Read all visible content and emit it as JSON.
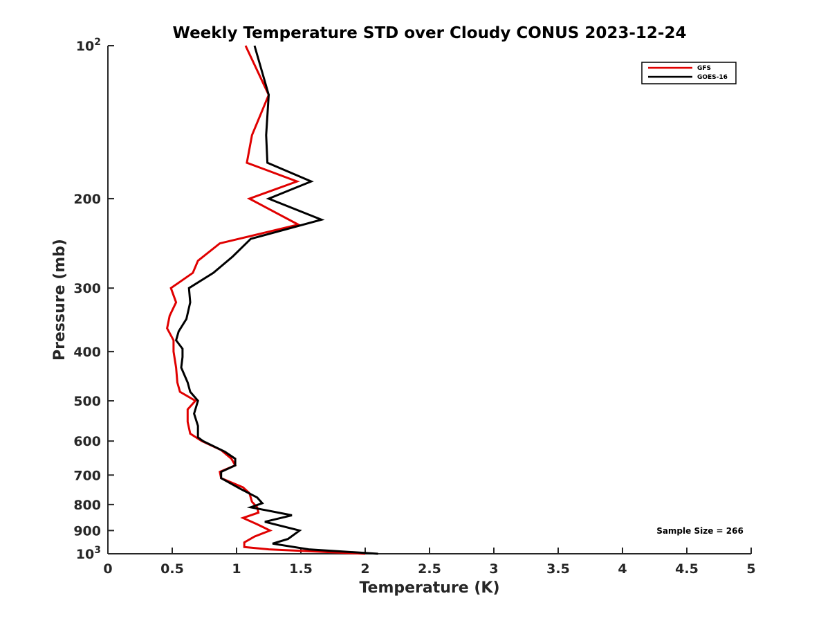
{
  "chart_data": {
    "type": "line",
    "title": "Weekly Temperature STD over Cloudy CONUS 2023-12-24",
    "xlabel": "Temperature (K)",
    "ylabel": "Pressure (mb)",
    "xlim": [
      0,
      5
    ],
    "ylim": [
      1000,
      100
    ],
    "yscale": "log",
    "grid": false,
    "legend_position": "top-right",
    "x_ticks": [
      {
        "value": 0,
        "label": "0"
      },
      {
        "value": 0.5,
        "label": "0.5"
      },
      {
        "value": 1,
        "label": "1"
      },
      {
        "value": 1.5,
        "label": "1.5"
      },
      {
        "value": 2,
        "label": "2"
      },
      {
        "value": 2.5,
        "label": "2.5"
      },
      {
        "value": 3,
        "label": "3"
      },
      {
        "value": 3.5,
        "label": "3.5"
      },
      {
        "value": 4,
        "label": "4"
      },
      {
        "value": 4.5,
        "label": "4.5"
      },
      {
        "value": 5,
        "label": "5"
      }
    ],
    "y_ticks": [
      {
        "value": 100,
        "label": "10",
        "sup": "2"
      },
      {
        "value": 200,
        "label": "200"
      },
      {
        "value": 300,
        "label": "300"
      },
      {
        "value": 400,
        "label": "400"
      },
      {
        "value": 500,
        "label": "500"
      },
      {
        "value": 600,
        "label": "600"
      },
      {
        "value": 700,
        "label": "700"
      },
      {
        "value": 800,
        "label": "800"
      },
      {
        "value": 900,
        "label": "900"
      },
      {
        "value": 1000,
        "label": "10",
        "sup": "3"
      }
    ],
    "annotation": "Sample Size = 266",
    "series": [
      {
        "name": "GFS",
        "color": "#e00000",
        "points": [
          [
            1.07,
            100
          ],
          [
            1.25,
            125
          ],
          [
            1.12,
            150
          ],
          [
            1.08,
            170
          ],
          [
            1.47,
            185
          ],
          [
            1.1,
            200
          ],
          [
            1.48,
            225
          ],
          [
            0.87,
            245
          ],
          [
            0.7,
            265
          ],
          [
            0.66,
            280
          ],
          [
            0.49,
            300
          ],
          [
            0.53,
            320
          ],
          [
            0.48,
            340
          ],
          [
            0.46,
            360
          ],
          [
            0.51,
            380
          ],
          [
            0.51,
            400
          ],
          [
            0.53,
            430
          ],
          [
            0.54,
            460
          ],
          [
            0.56,
            480
          ],
          [
            0.68,
            500
          ],
          [
            0.62,
            520
          ],
          [
            0.62,
            550
          ],
          [
            0.64,
            580
          ],
          [
            0.73,
            600
          ],
          [
            0.88,
            625
          ],
          [
            0.96,
            650
          ],
          [
            0.99,
            670
          ],
          [
            0.87,
            690
          ],
          [
            0.88,
            710
          ],
          [
            1.05,
            740
          ],
          [
            1.1,
            760
          ],
          [
            1.12,
            790
          ],
          [
            1.16,
            810
          ],
          [
            1.17,
            830
          ],
          [
            1.05,
            850
          ],
          [
            1.16,
            875
          ],
          [
            1.26,
            900
          ],
          [
            1.14,
            925
          ],
          [
            1.06,
            950
          ],
          [
            1.06,
            970
          ],
          [
            1.25,
            980
          ],
          [
            2.0,
            1000
          ]
        ]
      },
      {
        "name": "GOES-16",
        "color": "#000000",
        "points": [
          [
            1.14,
            100
          ],
          [
            1.25,
            125
          ],
          [
            1.23,
            150
          ],
          [
            1.24,
            170
          ],
          [
            1.58,
            185
          ],
          [
            1.25,
            200
          ],
          [
            1.66,
            220
          ],
          [
            1.11,
            240
          ],
          [
            0.97,
            260
          ],
          [
            0.82,
            280
          ],
          [
            0.63,
            300
          ],
          [
            0.64,
            320
          ],
          [
            0.61,
            345
          ],
          [
            0.55,
            365
          ],
          [
            0.53,
            380
          ],
          [
            0.58,
            395
          ],
          [
            0.58,
            410
          ],
          [
            0.57,
            430
          ],
          [
            0.62,
            460
          ],
          [
            0.64,
            480
          ],
          [
            0.7,
            500
          ],
          [
            0.67,
            530
          ],
          [
            0.7,
            560
          ],
          [
            0.7,
            590
          ],
          [
            0.74,
            600
          ],
          [
            0.91,
            630
          ],
          [
            0.99,
            650
          ],
          [
            0.99,
            670
          ],
          [
            0.88,
            690
          ],
          [
            0.88,
            710
          ],
          [
            1.03,
            745
          ],
          [
            1.16,
            775
          ],
          [
            1.2,
            795
          ],
          [
            1.11,
            810
          ],
          [
            1.43,
            840
          ],
          [
            1.22,
            865
          ],
          [
            1.49,
            900
          ],
          [
            1.4,
            935
          ],
          [
            1.28,
            955
          ],
          [
            1.56,
            980
          ],
          [
            2.1,
            1000
          ]
        ]
      }
    ]
  }
}
